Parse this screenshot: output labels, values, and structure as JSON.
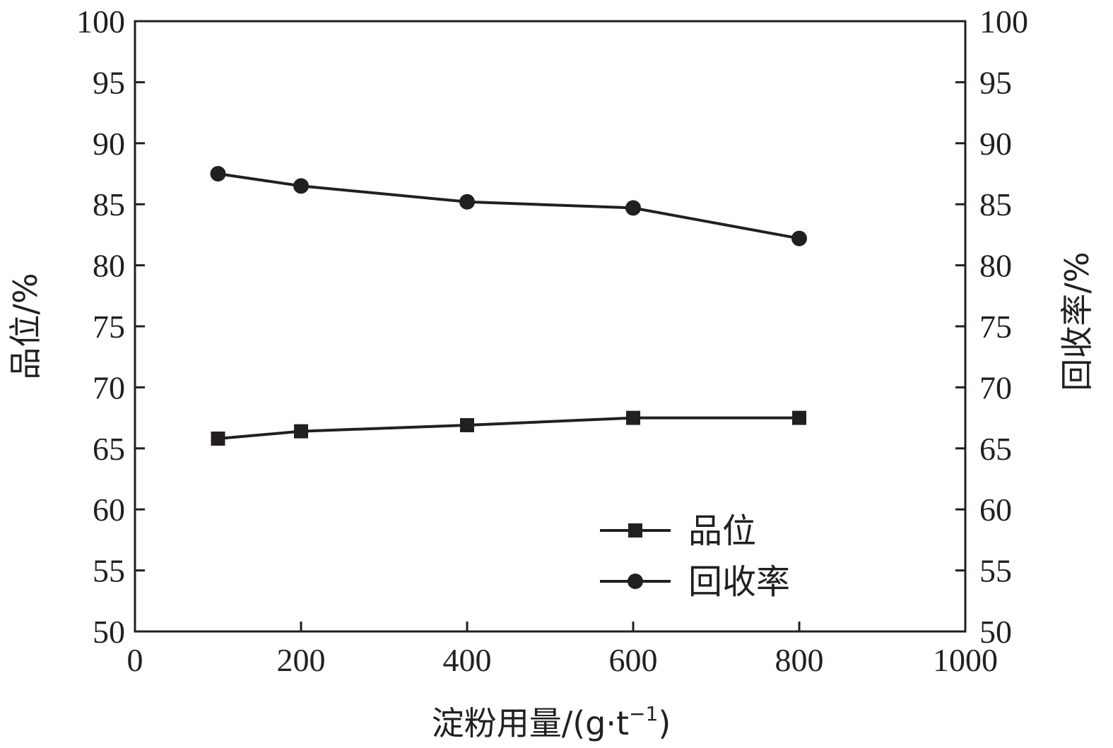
{
  "chart_data": {
    "type": "line",
    "x": [
      100,
      200,
      400,
      600,
      800
    ],
    "series": [
      {
        "name": "品位",
        "axis": "left",
        "marker": "square",
        "values": [
          65.8,
          66.4,
          66.9,
          67.5,
          67.5
        ]
      },
      {
        "name": "回收率",
        "axis": "right",
        "marker": "circle",
        "values": [
          87.5,
          86.5,
          85.2,
          84.7,
          82.2
        ]
      }
    ],
    "xlabel": "淀粉用量/(g·t",
    "xlabel_sup": "−1",
    "xlabel_tail": ")",
    "ylabel_left": "品位/%",
    "ylabel_right": "回收率/%",
    "xlim": [
      0,
      1000
    ],
    "ylim": [
      50,
      100
    ],
    "xticks": [
      "0",
      "200",
      "400",
      "600",
      "800",
      "1000"
    ],
    "yticks": [
      "50",
      "55",
      "60",
      "65",
      "70",
      "75",
      "80",
      "85",
      "90",
      "95",
      "100"
    ],
    "grid": false,
    "legend_position": "lower-right",
    "colors": {
      "ink": "#231f20",
      "background": "#ffffff"
    }
  }
}
